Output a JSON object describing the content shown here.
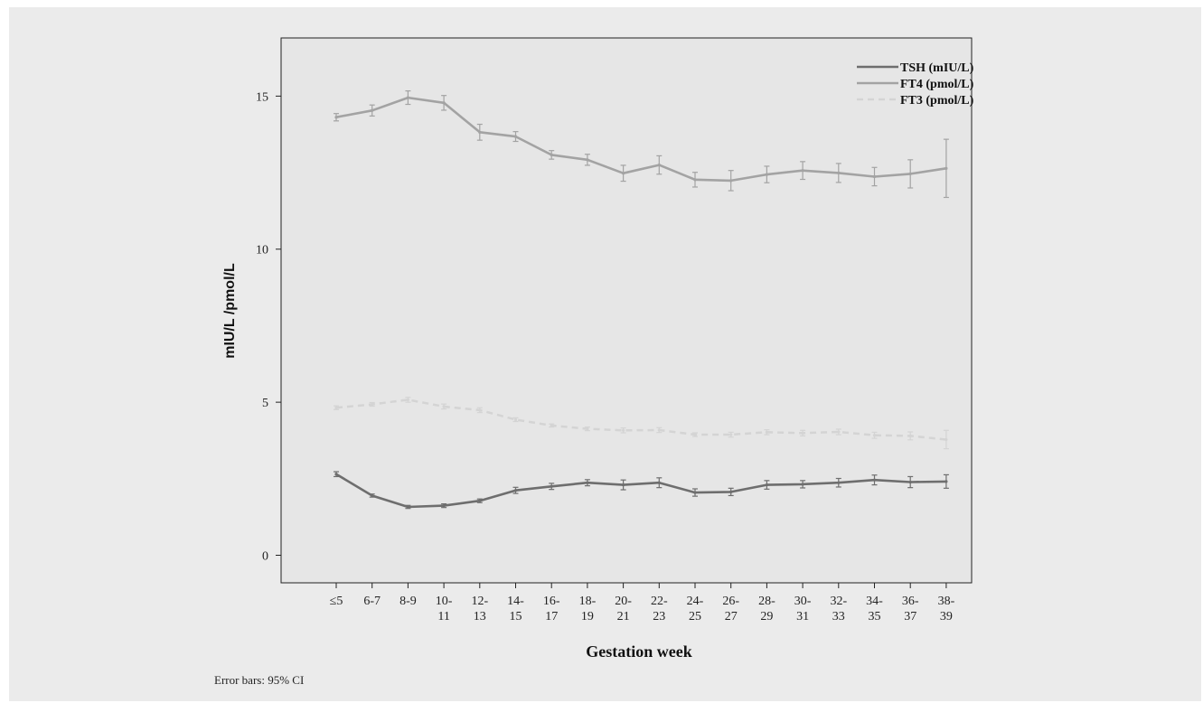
{
  "chart_data": {
    "type": "line",
    "xlabel": "Gestation week",
    "ylabel": "mIU/L /pmol/L",
    "ylim": [
      -0.9,
      16.9
    ],
    "yticks": [
      0,
      5,
      10,
      15
    ],
    "grid": false,
    "legend_placement": "top-right",
    "categories": [
      [
        "≤5"
      ],
      [
        "6-7"
      ],
      [
        "8-9"
      ],
      [
        "10-",
        "11"
      ],
      [
        "12-",
        "13"
      ],
      [
        "14-",
        "15"
      ],
      [
        "16-",
        "17"
      ],
      [
        "18-",
        "19"
      ],
      [
        "20-",
        "21"
      ],
      [
        "22-",
        "23"
      ],
      [
        "24-",
        "25"
      ],
      [
        "26-",
        "27"
      ],
      [
        "28-",
        "29"
      ],
      [
        "30-",
        "31"
      ],
      [
        "32-",
        "33"
      ],
      [
        "34-",
        "35"
      ],
      [
        "36-",
        "37"
      ],
      [
        "38-",
        "39"
      ]
    ],
    "series": [
      {
        "name": "TSH (mIU/L)",
        "color": "#6e6e6e",
        "dash": "solid",
        "values": [
          2.65,
          1.95,
          1.58,
          1.62,
          1.78,
          2.12,
          2.25,
          2.37,
          2.3,
          2.37,
          2.05,
          2.07,
          2.3,
          2.32,
          2.37,
          2.46,
          2.39,
          2.41
        ],
        "ci": [
          0.08,
          0.05,
          0.05,
          0.06,
          0.06,
          0.1,
          0.1,
          0.1,
          0.16,
          0.16,
          0.12,
          0.12,
          0.14,
          0.12,
          0.14,
          0.16,
          0.18,
          0.22
        ]
      },
      {
        "name": "FT4 (pmol/L)",
        "color": "#a3a3a3",
        "dash": "solid",
        "values": [
          14.31,
          14.53,
          14.95,
          14.78,
          13.82,
          13.68,
          13.08,
          12.92,
          12.48,
          12.75,
          12.27,
          12.24,
          12.44,
          12.57,
          12.49,
          12.37,
          12.46,
          12.64
        ],
        "ci": [
          0.12,
          0.18,
          0.22,
          0.24,
          0.26,
          0.16,
          0.14,
          0.18,
          0.26,
          0.3,
          0.24,
          0.33,
          0.27,
          0.29,
          0.31,
          0.3,
          0.46,
          0.95
        ]
      },
      {
        "name": "FT3 (pmol/L)",
        "color": "#d4d4d4",
        "dash": "dashed",
        "values": [
          4.82,
          4.93,
          5.08,
          4.86,
          4.74,
          4.43,
          4.24,
          4.13,
          4.08,
          4.09,
          3.94,
          3.94,
          4.02,
          3.99,
          4.03,
          3.92,
          3.9,
          3.78
        ],
        "ci": [
          0.06,
          0.06,
          0.08,
          0.08,
          0.08,
          0.06,
          0.05,
          0.06,
          0.08,
          0.08,
          0.06,
          0.08,
          0.08,
          0.09,
          0.09,
          0.1,
          0.13,
          0.3
        ]
      }
    ],
    "footnote": "Error bars: 95% CI"
  }
}
